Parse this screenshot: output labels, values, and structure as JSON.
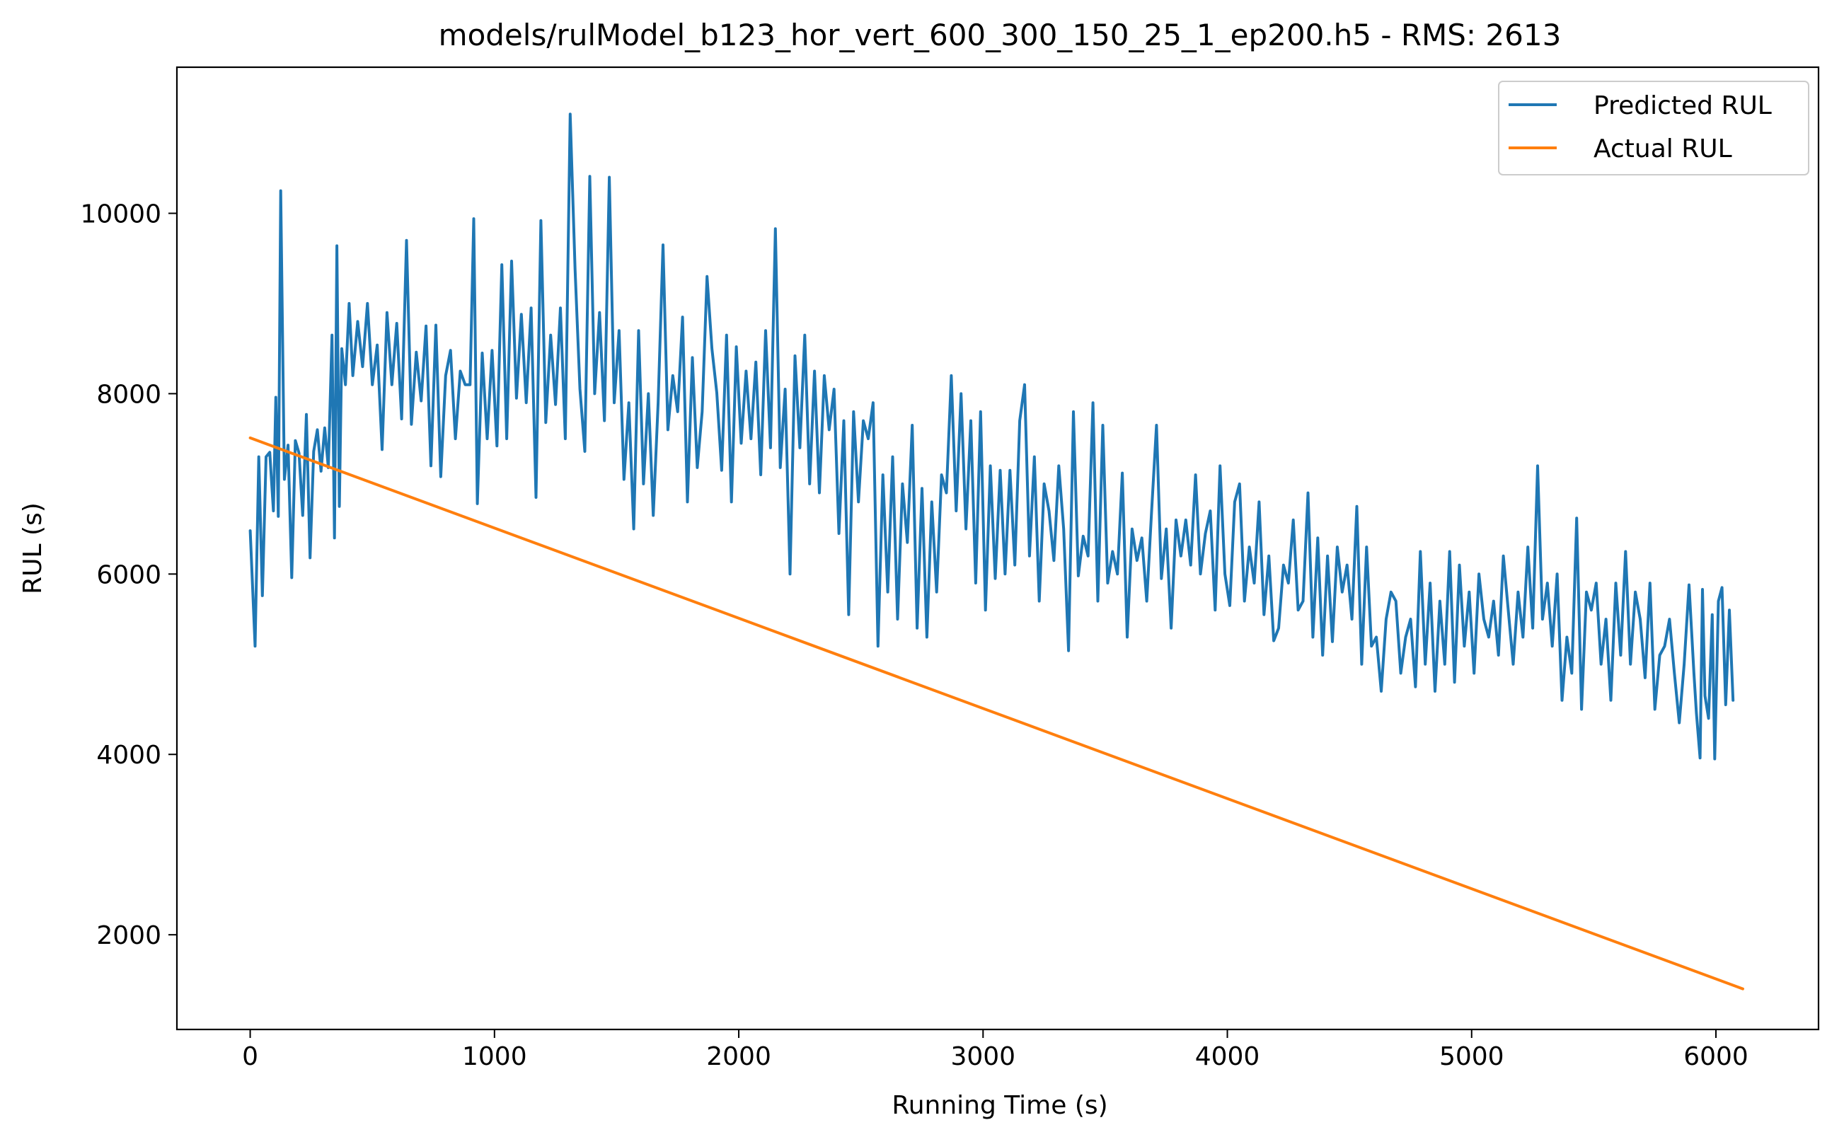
{
  "chart_data": {
    "type": "line",
    "title": "models/rulModel_b123_hor_vert_600_300_150_25_1_ep200.h5 - RMS: 2613",
    "xlabel": "Running Time (s)",
    "ylabel": "RUL (s)",
    "xlim": [
      -300,
      6420
    ],
    "ylim": [
      950,
      11620
    ],
    "xticks": [
      0,
      1000,
      2000,
      3000,
      4000,
      5000,
      6000
    ],
    "yticks": [
      2000,
      4000,
      6000,
      8000,
      10000
    ],
    "legend": "top-right",
    "grid": false,
    "series": [
      {
        "name": "Predicted RUL",
        "color": "#1f77b4",
        "points": [
          [
            0,
            6480
          ],
          [
            20,
            5200
          ],
          [
            35,
            7300
          ],
          [
            50,
            5760
          ],
          [
            65,
            7300
          ],
          [
            80,
            7350
          ],
          [
            95,
            6700
          ],
          [
            105,
            7960
          ],
          [
            115,
            6640
          ],
          [
            125,
            10250
          ],
          [
            140,
            7050
          ],
          [
            155,
            7430
          ],
          [
            170,
            5960
          ],
          [
            185,
            7480
          ],
          [
            200,
            7340
          ],
          [
            215,
            6650
          ],
          [
            230,
            7770
          ],
          [
            245,
            6180
          ],
          [
            260,
            7360
          ],
          [
            275,
            7600
          ],
          [
            290,
            7140
          ],
          [
            305,
            7620
          ],
          [
            320,
            7180
          ],
          [
            335,
            8650
          ],
          [
            345,
            6400
          ],
          [
            355,
            9640
          ],
          [
            365,
            6750
          ],
          [
            375,
            8500
          ],
          [
            390,
            8100
          ],
          [
            405,
            9000
          ],
          [
            420,
            8200
          ],
          [
            440,
            8800
          ],
          [
            460,
            8300
          ],
          [
            480,
            9000
          ],
          [
            500,
            8100
          ],
          [
            520,
            8540
          ],
          [
            540,
            7380
          ],
          [
            560,
            8900
          ],
          [
            580,
            8100
          ],
          [
            600,
            8780
          ],
          [
            620,
            7720
          ],
          [
            640,
            9700
          ],
          [
            660,
            7660
          ],
          [
            680,
            8460
          ],
          [
            700,
            7920
          ],
          [
            720,
            8750
          ],
          [
            740,
            7200
          ],
          [
            760,
            8760
          ],
          [
            780,
            7080
          ],
          [
            800,
            8200
          ],
          [
            820,
            8480
          ],
          [
            840,
            7500
          ],
          [
            860,
            8250
          ],
          [
            880,
            8100
          ],
          [
            900,
            8100
          ],
          [
            915,
            9940
          ],
          [
            930,
            6780
          ],
          [
            950,
            8450
          ],
          [
            970,
            7500
          ],
          [
            990,
            8480
          ],
          [
            1010,
            7420
          ],
          [
            1030,
            9430
          ],
          [
            1050,
            7500
          ],
          [
            1070,
            9470
          ],
          [
            1090,
            7950
          ],
          [
            1110,
            8880
          ],
          [
            1130,
            7900
          ],
          [
            1150,
            8950
          ],
          [
            1170,
            6850
          ],
          [
            1190,
            9920
          ],
          [
            1210,
            7680
          ],
          [
            1230,
            8650
          ],
          [
            1250,
            7880
          ],
          [
            1270,
            8950
          ],
          [
            1290,
            7500
          ],
          [
            1310,
            11100
          ],
          [
            1330,
            9380
          ],
          [
            1350,
            8050
          ],
          [
            1370,
            7360
          ],
          [
            1390,
            10410
          ],
          [
            1410,
            8000
          ],
          [
            1430,
            8900
          ],
          [
            1450,
            7700
          ],
          [
            1470,
            10400
          ],
          [
            1490,
            7900
          ],
          [
            1510,
            8700
          ],
          [
            1530,
            7050
          ],
          [
            1550,
            7900
          ],
          [
            1570,
            6500
          ],
          [
            1590,
            8700
          ],
          [
            1610,
            7000
          ],
          [
            1630,
            8000
          ],
          [
            1650,
            6650
          ],
          [
            1670,
            7900
          ],
          [
            1690,
            9650
          ],
          [
            1710,
            7600
          ],
          [
            1730,
            8200
          ],
          [
            1750,
            7800
          ],
          [
            1770,
            8850
          ],
          [
            1790,
            6800
          ],
          [
            1810,
            8400
          ],
          [
            1830,
            7180
          ],
          [
            1850,
            7800
          ],
          [
            1870,
            9300
          ],
          [
            1890,
            8500
          ],
          [
            1910,
            8010
          ],
          [
            1930,
            7150
          ],
          [
            1950,
            8650
          ],
          [
            1970,
            6800
          ],
          [
            1990,
            8520
          ],
          [
            2010,
            7450
          ],
          [
            2030,
            8250
          ],
          [
            2050,
            7500
          ],
          [
            2070,
            8350
          ],
          [
            2090,
            7100
          ],
          [
            2110,
            8700
          ],
          [
            2130,
            7400
          ],
          [
            2150,
            9830
          ],
          [
            2170,
            7180
          ],
          [
            2190,
            8050
          ],
          [
            2210,
            6000
          ],
          [
            2230,
            8420
          ],
          [
            2250,
            7400
          ],
          [
            2270,
            8650
          ],
          [
            2290,
            7000
          ],
          [
            2310,
            8250
          ],
          [
            2330,
            6900
          ],
          [
            2350,
            8200
          ],
          [
            2370,
            7600
          ],
          [
            2390,
            8050
          ],
          [
            2410,
            6450
          ],
          [
            2430,
            7700
          ],
          [
            2450,
            5550
          ],
          [
            2470,
            7800
          ],
          [
            2490,
            6800
          ],
          [
            2510,
            7700
          ],
          [
            2530,
            7500
          ],
          [
            2550,
            7900
          ],
          [
            2570,
            5200
          ],
          [
            2590,
            7100
          ],
          [
            2610,
            5800
          ],
          [
            2630,
            7300
          ],
          [
            2650,
            5500
          ],
          [
            2670,
            7000
          ],
          [
            2690,
            6350
          ],
          [
            2710,
            7650
          ],
          [
            2730,
            5400
          ],
          [
            2750,
            6950
          ],
          [
            2770,
            5300
          ],
          [
            2790,
            6800
          ],
          [
            2810,
            5800
          ],
          [
            2830,
            7100
          ],
          [
            2850,
            6900
          ],
          [
            2870,
            8200
          ],
          [
            2890,
            6700
          ],
          [
            2910,
            8000
          ],
          [
            2930,
            6500
          ],
          [
            2950,
            7700
          ],
          [
            2970,
            5900
          ],
          [
            2990,
            7800
          ],
          [
            3010,
            5600
          ],
          [
            3030,
            7200
          ],
          [
            3050,
            5950
          ],
          [
            3070,
            7150
          ],
          [
            3090,
            6000
          ],
          [
            3110,
            7150
          ],
          [
            3130,
            6100
          ],
          [
            3150,
            7700
          ],
          [
            3170,
            8100
          ],
          [
            3190,
            6200
          ],
          [
            3210,
            7300
          ],
          [
            3230,
            5700
          ],
          [
            3250,
            7000
          ],
          [
            3270,
            6700
          ],
          [
            3290,
            6150
          ],
          [
            3310,
            7200
          ],
          [
            3330,
            6500
          ],
          [
            3350,
            5150
          ],
          [
            3370,
            7800
          ],
          [
            3390,
            5980
          ],
          [
            3410,
            6420
          ],
          [
            3430,
            6200
          ],
          [
            3450,
            7900
          ],
          [
            3470,
            5700
          ],
          [
            3490,
            7650
          ],
          [
            3510,
            5900
          ],
          [
            3530,
            6250
          ],
          [
            3550,
            6000
          ],
          [
            3570,
            7120
          ],
          [
            3590,
            5300
          ],
          [
            3610,
            6500
          ],
          [
            3630,
            6150
          ],
          [
            3650,
            6400
          ],
          [
            3670,
            5700
          ],
          [
            3690,
            6700
          ],
          [
            3710,
            7650
          ],
          [
            3730,
            5950
          ],
          [
            3750,
            6500
          ],
          [
            3770,
            5400
          ],
          [
            3790,
            6600
          ],
          [
            3810,
            6200
          ],
          [
            3830,
            6600
          ],
          [
            3850,
            6100
          ],
          [
            3870,
            7100
          ],
          [
            3890,
            6000
          ],
          [
            3910,
            6450
          ],
          [
            3930,
            6700
          ],
          [
            3950,
            5600
          ],
          [
            3970,
            7200
          ],
          [
            3990,
            6000
          ],
          [
            4010,
            5650
          ],
          [
            4030,
            6800
          ],
          [
            4050,
            7000
          ],
          [
            4070,
            5700
          ],
          [
            4090,
            6300
          ],
          [
            4110,
            5900
          ],
          [
            4130,
            6800
          ],
          [
            4150,
            5550
          ],
          [
            4170,
            6200
          ],
          [
            4190,
            5260
          ],
          [
            4210,
            5400
          ],
          [
            4230,
            6100
          ],
          [
            4250,
            5900
          ],
          [
            4270,
            6600
          ],
          [
            4290,
            5600
          ],
          [
            4310,
            5700
          ],
          [
            4330,
            6900
          ],
          [
            4350,
            5300
          ],
          [
            4370,
            6400
          ],
          [
            4390,
            5100
          ],
          [
            4410,
            6200
          ],
          [
            4430,
            5250
          ],
          [
            4450,
            6300
          ],
          [
            4470,
            5800
          ],
          [
            4490,
            6100
          ],
          [
            4510,
            5500
          ],
          [
            4530,
            6750
          ],
          [
            4550,
            5000
          ],
          [
            4570,
            6300
          ],
          [
            4590,
            5200
          ],
          [
            4610,
            5300
          ],
          [
            4630,
            4700
          ],
          [
            4650,
            5500
          ],
          [
            4670,
            5800
          ],
          [
            4690,
            5700
          ],
          [
            4710,
            4900
          ],
          [
            4730,
            5300
          ],
          [
            4750,
            5500
          ],
          [
            4770,
            4750
          ],
          [
            4790,
            6250
          ],
          [
            4810,
            5000
          ],
          [
            4830,
            5900
          ],
          [
            4850,
            4700
          ],
          [
            4870,
            5700
          ],
          [
            4890,
            5000
          ],
          [
            4910,
            6250
          ],
          [
            4930,
            4800
          ],
          [
            4950,
            6100
          ],
          [
            4970,
            5200
          ],
          [
            4990,
            5800
          ],
          [
            5010,
            4900
          ],
          [
            5030,
            6000
          ],
          [
            5050,
            5500
          ],
          [
            5070,
            5300
          ],
          [
            5090,
            5700
          ],
          [
            5110,
            5100
          ],
          [
            5130,
            6200
          ],
          [
            5150,
            5600
          ],
          [
            5170,
            5000
          ],
          [
            5190,
            5800
          ],
          [
            5210,
            5300
          ],
          [
            5230,
            6300
          ],
          [
            5250,
            5400
          ],
          [
            5270,
            7200
          ],
          [
            5290,
            5500
          ],
          [
            5310,
            5900
          ],
          [
            5330,
            5200
          ],
          [
            5350,
            6000
          ],
          [
            5370,
            4600
          ],
          [
            5390,
            5300
          ],
          [
            5410,
            4900
          ],
          [
            5430,
            6620
          ],
          [
            5450,
            4500
          ],
          [
            5470,
            5800
          ],
          [
            5490,
            5600
          ],
          [
            5510,
            5900
          ],
          [
            5530,
            5000
          ],
          [
            5550,
            5500
          ],
          [
            5570,
            4600
          ],
          [
            5590,
            5900
          ],
          [
            5610,
            5100
          ],
          [
            5630,
            6250
          ],
          [
            5650,
            5000
          ],
          [
            5670,
            5800
          ],
          [
            5690,
            5500
          ],
          [
            5710,
            4850
          ],
          [
            5730,
            5900
          ],
          [
            5750,
            4500
          ],
          [
            5770,
            5100
          ],
          [
            5790,
            5200
          ],
          [
            5810,
            5500
          ],
          [
            5830,
            4900
          ],
          [
            5850,
            4350
          ],
          [
            5870,
            5000
          ],
          [
            5890,
            5880
          ],
          [
            5910,
            4900
          ],
          [
            5920,
            4460
          ],
          [
            5935,
            3960
          ],
          [
            5945,
            5830
          ],
          [
            5955,
            4650
          ],
          [
            5970,
            4400
          ],
          [
            5985,
            5550
          ],
          [
            5995,
            3950
          ],
          [
            6010,
            5700
          ],
          [
            6025,
            5850
          ],
          [
            6040,
            4550
          ],
          [
            6055,
            5600
          ],
          [
            6070,
            4600
          ]
        ]
      },
      {
        "name": "Actual RUL",
        "color": "#ff7f0e",
        "points": [
          [
            0,
            7510
          ],
          [
            6110,
            1400
          ]
        ]
      }
    ]
  }
}
